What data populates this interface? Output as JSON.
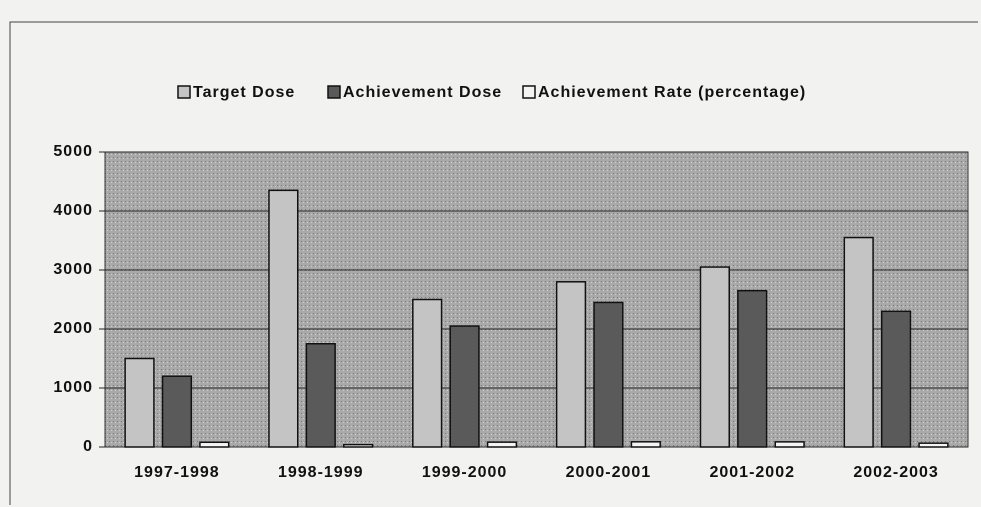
{
  "chart_data": {
    "type": "bar",
    "categories": [
      "1997-1998",
      "1998-1999",
      "1999-2000",
      "2000-2001",
      "2001-2002",
      "2002-2003"
    ],
    "series": [
      {
        "name": "Target Dose",
        "color": "#c4c4c4",
        "values": [
          1500,
          4350,
          2500,
          2800,
          3050,
          3550
        ]
      },
      {
        "name": "Achievement Dose",
        "color": "#5a5a5a",
        "values": [
          1200,
          1750,
          2050,
          2450,
          2650,
          2300
        ]
      },
      {
        "name": "Achievement Rate (percentage)",
        "color": "#f4f4f4",
        "values": [
          80,
          40,
          82,
          88,
          87,
          65
        ]
      }
    ],
    "ylim": [
      0,
      5000
    ],
    "yticks": [
      0,
      1000,
      2000,
      3000,
      4000,
      5000
    ],
    "grid": true,
    "legend": "top"
  }
}
